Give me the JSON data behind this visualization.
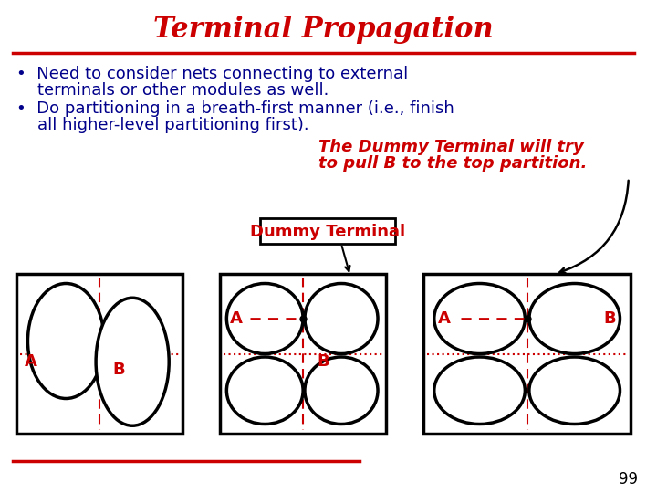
{
  "title": "Terminal Propagation",
  "title_color": "#cc0000",
  "title_fontsize": 22,
  "bullet1_line1": "•  Need to consider nets connecting to external",
  "bullet1_line2": "    terminals or other modules as well.",
  "bullet2_line1": "•  Do partitioning in a breath-first manner (i.e., finish",
  "bullet2_line2": "    all higher-level partitioning first).",
  "bullet_color": "#00008B",
  "bullet_fontsize": 13,
  "red_note_line1": "The Dummy Terminal will try",
  "red_note_line2": "to pull B to the top partition.",
  "red_note_color": "#cc0000",
  "red_note_fontsize": 13,
  "dummy_label": "Dummy Terminal",
  "dummy_label_color": "#cc0000",
  "dummy_label_fontsize": 13,
  "bg_color": "#ffffff",
  "page_number": "99",
  "divider_color": "#cc0000"
}
